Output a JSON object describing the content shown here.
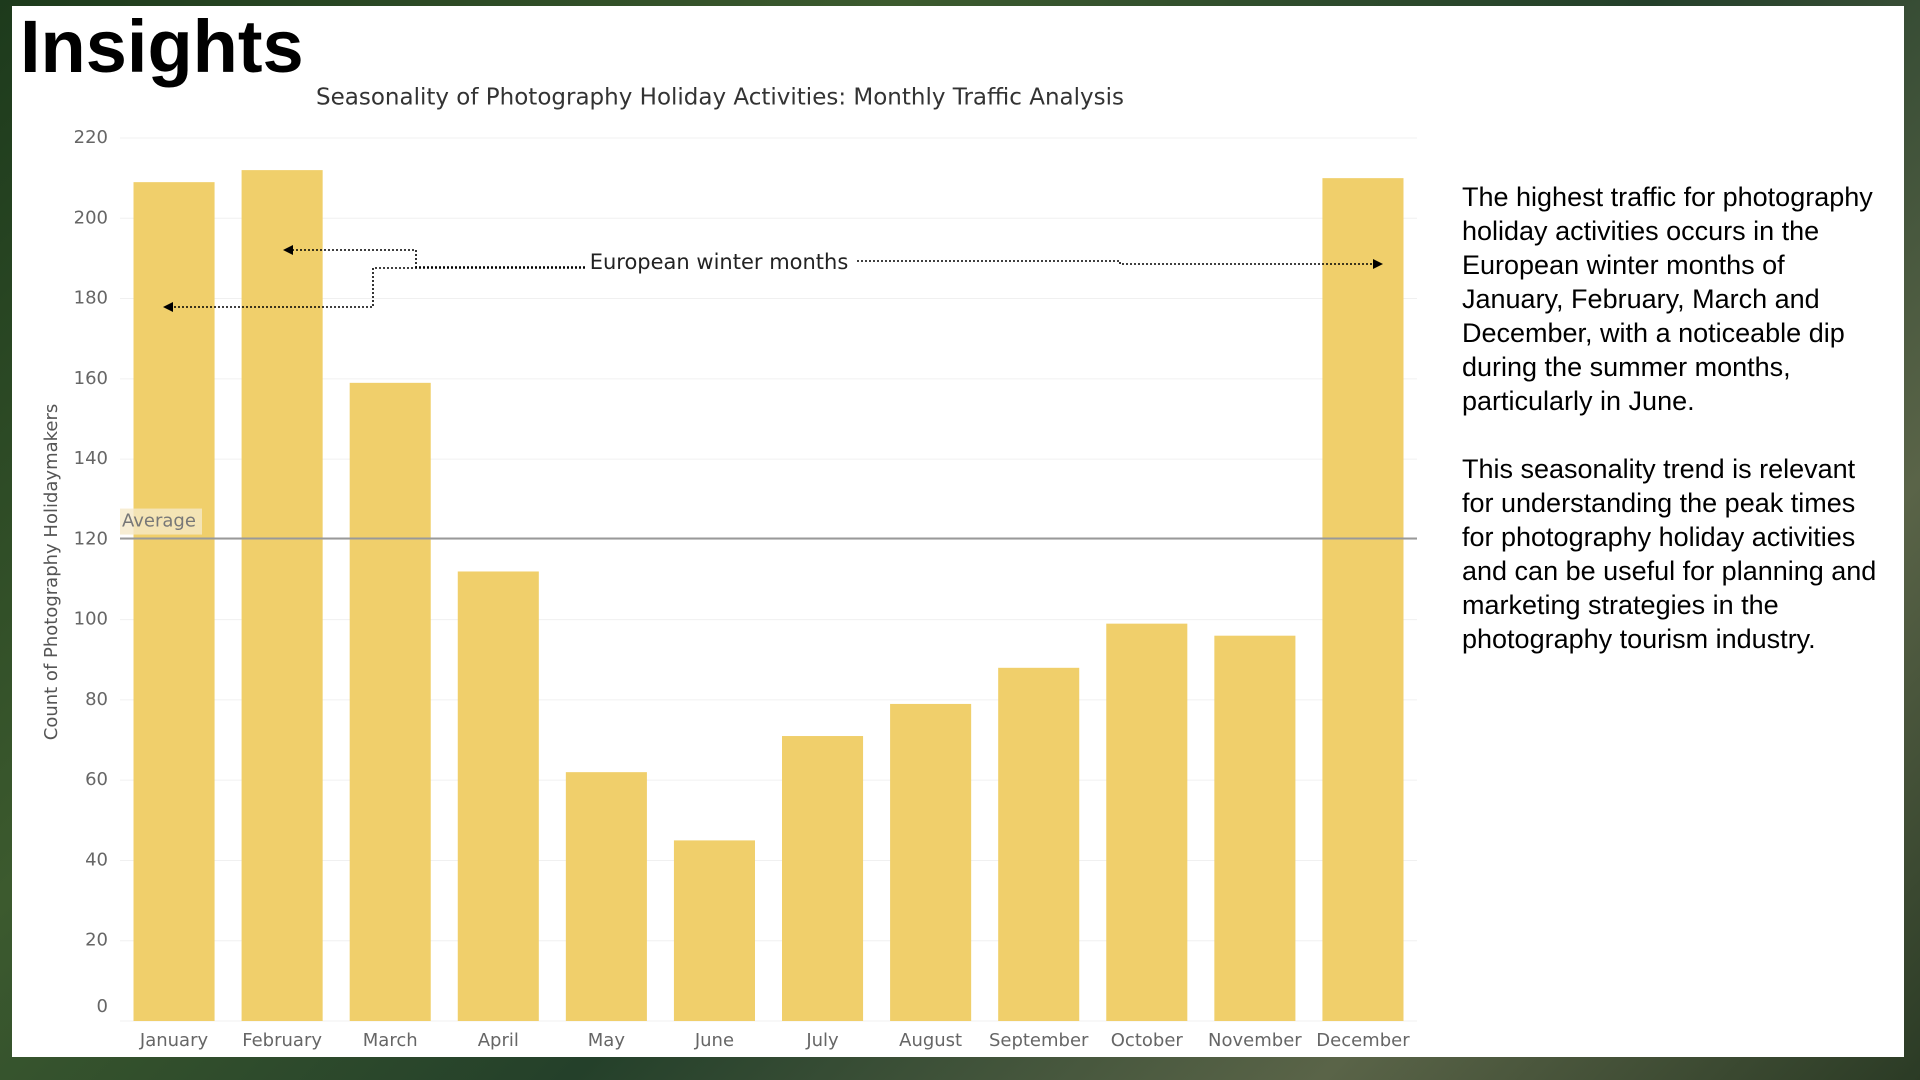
{
  "header": {
    "title": "Insights"
  },
  "chart_data": {
    "type": "bar",
    "title": "Seasonality of Photography Holiday Activities: Monthly Traffic Analysis",
    "y_label": "Count of Photography Holidaymakers",
    "categories": [
      "January",
      "February",
      "March",
      "April",
      "May",
      "June",
      "July",
      "August",
      "September",
      "October",
      "November",
      "December"
    ],
    "values": [
      209,
      212,
      159,
      112,
      62,
      45,
      71,
      79,
      88,
      99,
      96,
      210
    ],
    "color": "#f0cf6b",
    "ylim": [
      0,
      220
    ],
    "yticks": [
      0,
      20,
      40,
      60,
      80,
      100,
      120,
      140,
      160,
      180,
      200,
      220
    ],
    "grid": true,
    "average": {
      "label": "Average",
      "value": 120.2
    },
    "annotation": "European winter months"
  },
  "notes": {
    "paragraphs": [
      "The highest traffic for photography holiday activities occurs in the European winter months of January, February, March and December, with a noticeable dip during the summer months, particularly in June.",
      "This seasonality trend is relevant for understanding the peak times for photography holiday activities and can be useful for planning and marketing strategies in the photography tourism industry."
    ]
  }
}
